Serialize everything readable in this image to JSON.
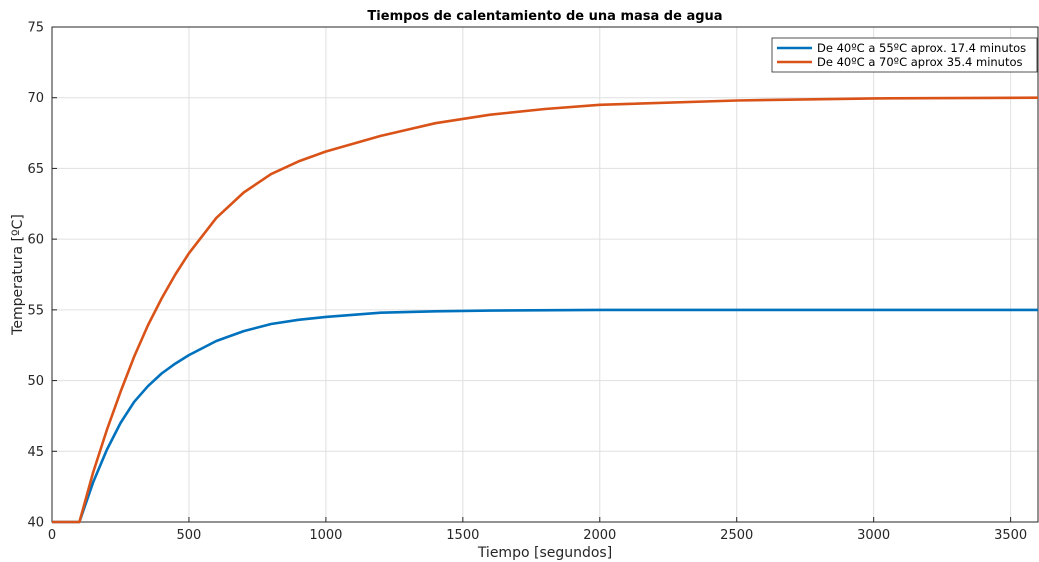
{
  "chart_data": {
    "type": "line",
    "title": "Tiempos de calentamiento de una masa de agua",
    "xlabel": "Tiempo [segundos]",
    "ylabel": "Temperatura [ºC]",
    "xlim": [
      0,
      3600
    ],
    "ylim": [
      40,
      75
    ],
    "xticks": [
      0,
      500,
      1000,
      1500,
      2000,
      2500,
      3000,
      3500
    ],
    "yticks": [
      40,
      45,
      50,
      55,
      60,
      65,
      70,
      75
    ],
    "grid": true,
    "legend": "top-right",
    "series": [
      {
        "name": "De 40ºC a 55ºC aprox. 17.4 minutos",
        "color": "#0072BD",
        "x": [
          0,
          100,
          150,
          200,
          250,
          300,
          350,
          400,
          450,
          500,
          600,
          700,
          800,
          900,
          1000,
          1200,
          1400,
          1600,
          2000,
          2500,
          3000,
          3600
        ],
        "y": [
          40,
          40,
          42.8,
          45.1,
          47.0,
          48.5,
          49.6,
          50.5,
          51.2,
          51.8,
          52.8,
          53.5,
          54.0,
          54.3,
          54.5,
          54.8,
          54.9,
          54.95,
          55.0,
          55.0,
          55.0,
          55.0
        ]
      },
      {
        "name": "De 40ºC a 70ºC aprox 35.4 minutos",
        "color": "#D95319",
        "x": [
          0,
          100,
          150,
          200,
          250,
          300,
          350,
          400,
          450,
          500,
          600,
          700,
          800,
          900,
          1000,
          1200,
          1400,
          1600,
          1800,
          2000,
          2500,
          3000,
          3600
        ],
        "y": [
          40,
          40,
          43.5,
          46.5,
          49.2,
          51.7,
          53.9,
          55.8,
          57.5,
          59.0,
          61.5,
          63.3,
          64.6,
          65.5,
          66.2,
          67.3,
          68.2,
          68.8,
          69.2,
          69.5,
          69.8,
          69.95,
          70.0
        ]
      }
    ]
  }
}
